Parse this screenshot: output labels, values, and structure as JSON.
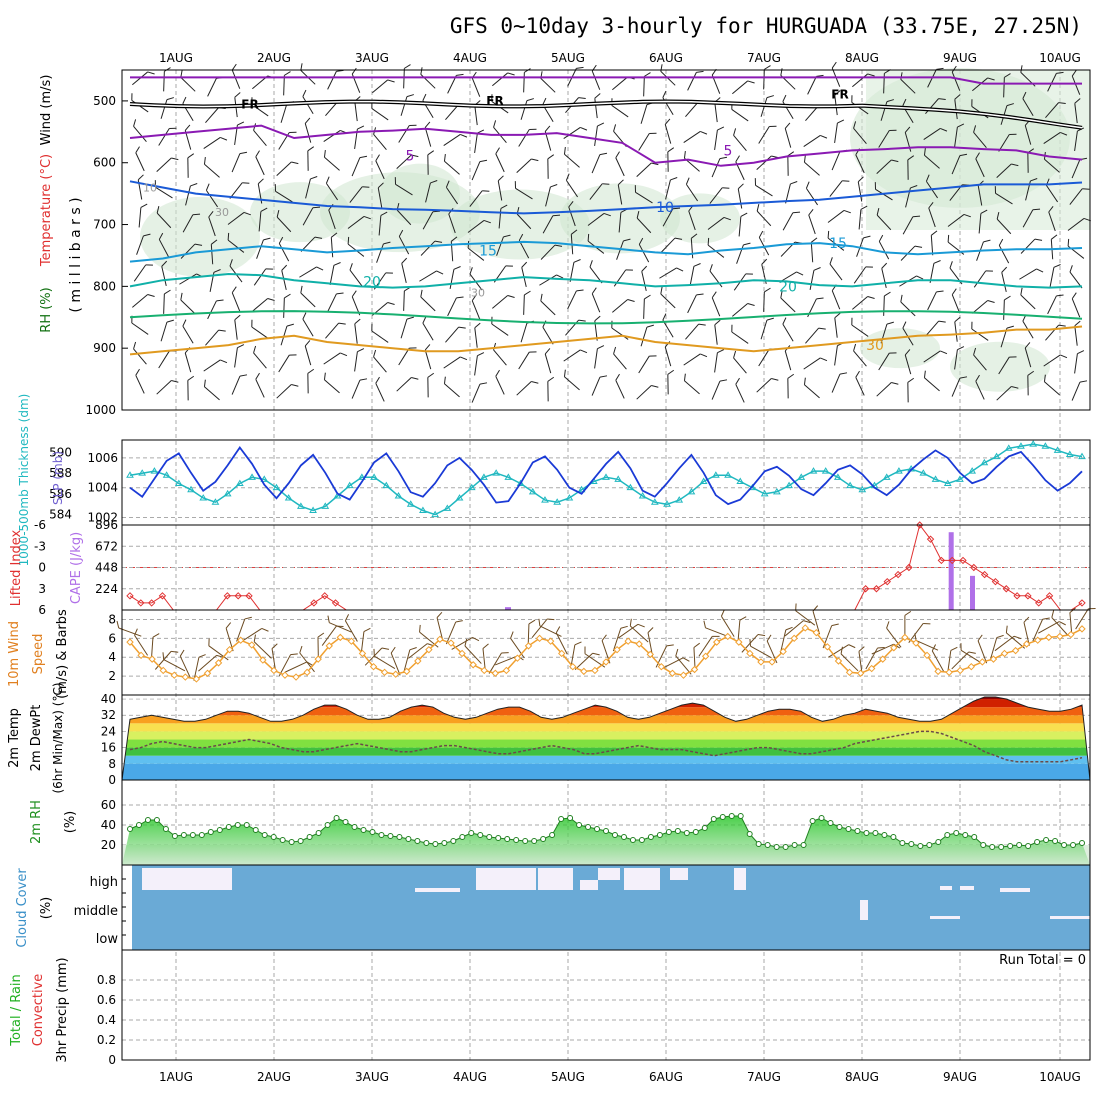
{
  "title": "GFS 0~10day 3-hourly for HURGUADA (33.75E, 27.25N)",
  "dates": [
    "1AUG",
    "2AUG",
    "3AUG",
    "4AUG",
    "5AUG",
    "6AUG",
    "7AUG",
    "8AUG",
    "9AUG",
    "10AUG"
  ],
  "colors": {
    "purple": "#8a1ab3",
    "blue1": "#1a5ad6",
    "blue2": "#1a9ad6",
    "teal": "#10b0a8",
    "green": "#18b070",
    "orange": "#e09a20",
    "slp": "#1a3ad6",
    "thick": "#20b8c0",
    "li": "#e03030",
    "cape": "#b070e8",
    "wind": "#f0a030",
    "rh": "#20a020",
    "cloud": "#6aaad6"
  },
  "panel_labels": {
    "wind": "Wind (m/s)",
    "temp": "Temperature (°C)",
    "rh": "RH (%)",
    "mb": "( m i l l i b a r s )",
    "thick": "1000-500mb Thickness (dm)",
    "slp": "SLP (mb)",
    "li": "Lifted Index",
    "cape": "CAPE (J/kg)",
    "w10": "10m Wind",
    "speed": "Speed",
    "barbs": "(m/s) & Barbs",
    "t2m": "2m Temp",
    "dew": "2m DewPt",
    "minmax": "(6hr Min/Max) (°C)",
    "rh2m": "2m RH",
    "pct": "(%)",
    "cloud": "Cloud Cover",
    "cpct": "(%)",
    "precip_a": "Total / Rain",
    "precip_b": "Convective",
    "precip_c": "3hr Precip (mm)"
  },
  "run_total": "Run Total = 0",
  "cloud_levels": [
    "high",
    "middle",
    "low"
  ],
  "chart_data": [
    {
      "type": "line",
      "panel": "upper-air cross-section",
      "y_label": "millibars",
      "ylim": [
        1000,
        450
      ],
      "y_ticks": [
        "500",
        "600",
        "700",
        "800",
        "900",
        "1000"
      ],
      "freezing_level_label": "FR",
      "freezing_level_mb": 505,
      "temperature_contour_labels": [
        "5",
        "10",
        "15",
        "20",
        "30"
      ],
      "rh_contour_labels": [
        "10",
        "30",
        "30"
      ],
      "series": [
        {
          "name": "5",
          "values": [
            560,
            555,
            550,
            545,
            540,
            560,
            555,
            550,
            548,
            545,
            550,
            555,
            555,
            552,
            560,
            568,
            600,
            595,
            605,
            600,
            590,
            585,
            580,
            578,
            575,
            575,
            578,
            580,
            590,
            595
          ]
        },
        {
          "name": "10",
          "values": [
            630,
            640,
            650,
            655,
            660,
            665,
            670,
            672,
            675,
            676,
            678,
            680,
            682,
            680,
            678,
            675,
            672,
            670,
            668,
            665,
            662,
            660,
            655,
            650,
            645,
            640,
            635,
            635,
            635,
            632
          ]
        },
        {
          "name": "15",
          "values": [
            760,
            755,
            745,
            740,
            735,
            740,
            745,
            742,
            738,
            735,
            732,
            730,
            728,
            730,
            735,
            740,
            745,
            748,
            742,
            738,
            732,
            730,
            735,
            745,
            748,
            745,
            742,
            740,
            740,
            738
          ]
        },
        {
          "name": "20",
          "values": [
            800,
            790,
            785,
            780,
            782,
            790,
            795,
            800,
            802,
            800,
            795,
            790,
            785,
            788,
            790,
            795,
            800,
            798,
            795,
            790,
            792,
            798,
            800,
            795,
            790,
            790,
            795,
            800,
            802,
            800
          ]
        },
        {
          "name": "30",
          "values": [
            910,
            905,
            900,
            895,
            885,
            880,
            890,
            895,
            900,
            905,
            905,
            900,
            895,
            890,
            885,
            880,
            890,
            895,
            900,
            905,
            900,
            895,
            890,
            885,
            880,
            878,
            875,
            870,
            870,
            865
          ]
        }
      ]
    },
    {
      "type": "line",
      "panel": "slp-thickness",
      "left_ticks": [
        "590",
        "588",
        "586",
        "584"
      ],
      "right_ticks": [
        "1006",
        "1004",
        "1002"
      ],
      "series": [
        {
          "name": "SLP (mb)",
          "values": [
            1004,
            1003.4,
            1004.6,
            1005.8,
            1006.3,
            1005.0,
            1003.8,
            1004.4,
            1005.5,
            1006.7,
            1005.6,
            1004.2,
            1003.3,
            1004.3,
            1005.5,
            1006.2,
            1005.0,
            1003.6,
            1003.2,
            1004.4,
            1005.7,
            1006.3,
            1005.1,
            1003.7,
            1003.4,
            1004.3,
            1005.5,
            1006.0,
            1005.2,
            1004.2,
            1003.0,
            1003.1,
            1004.3,
            1005.7,
            1006.1,
            1005.2,
            1004.0,
            1003.6,
            1004.6,
            1005.6,
            1006.4,
            1005.3,
            1003.8,
            1003.4,
            1004.3,
            1005.3,
            1006.2,
            1005.0,
            1003.5,
            1002.9,
            1003.2,
            1004.1,
            1005.1,
            1005.4,
            1004.8,
            1003.9,
            1003.5,
            1004.3,
            1005.2,
            1005.5,
            1004.9,
            1004.0,
            1003.5,
            1004.2,
            1005.2,
            1005.9,
            1006.5,
            1006.0,
            1005.0,
            1004.3,
            1004.6,
            1005.4,
            1006.1,
            1006.4,
            1005.5,
            1004.5,
            1003.8,
            1004.3,
            1005.1
          ]
        },
        {
          "name": "1000-500mb Thickness (dm)",
          "values": [
            587.8,
            588.0,
            588.2,
            587.8,
            587.0,
            586.4,
            585.6,
            585.2,
            586.0,
            587.0,
            587.6,
            587.4,
            586.6,
            585.6,
            584.8,
            584.4,
            584.8,
            585.8,
            586.8,
            587.6,
            587.6,
            586.8,
            585.8,
            585.0,
            584.4,
            584.0,
            584.6,
            585.6,
            586.6,
            587.6,
            588.0,
            587.6,
            587.0,
            586.2,
            585.4,
            585.2,
            585.6,
            586.4,
            587.2,
            587.6,
            587.4,
            586.6,
            585.8,
            585.2,
            585.0,
            585.4,
            586.2,
            587.2,
            587.8,
            587.8,
            587.2,
            586.6,
            586.0,
            586.2,
            586.8,
            587.6,
            588.2,
            588.2,
            587.6,
            586.8,
            586.4,
            586.8,
            587.6,
            588.2,
            588.4,
            588.0,
            587.4,
            587.0,
            587.4,
            588.2,
            589.0,
            589.6,
            590.4,
            590.6,
            590.8,
            590.6,
            590.2,
            589.8,
            589.6
          ]
        }
      ]
    },
    {
      "type": "bar",
      "panel": "lifted-index-cape",
      "left_ticks": [
        "-6",
        "-3",
        "0",
        "3",
        "6"
      ],
      "right_ticks": [
        "896",
        "672",
        "448",
        "224"
      ],
      "series": [
        {
          "name": "Lifted Index",
          "values": [
            4,
            5,
            5,
            4,
            6,
            6,
            6,
            6,
            6,
            4,
            4,
            4,
            6,
            6,
            6,
            6,
            6,
            5,
            4,
            5,
            6,
            6,
            6,
            6,
            6,
            6,
            6,
            6,
            6,
            6,
            6,
            6,
            6,
            6,
            6,
            6,
            6,
            6,
            6,
            6,
            6,
            6,
            6,
            6,
            6,
            6,
            6,
            6,
            6,
            6,
            6,
            6,
            6,
            6,
            6,
            6,
            6,
            6,
            6,
            6,
            6,
            6,
            6,
            6,
            6,
            6,
            6,
            6,
            3,
            3,
            2,
            1,
            0,
            -6,
            -4,
            -1,
            -1,
            -1,
            0,
            1,
            2,
            3,
            4,
            4,
            5,
            4,
            6,
            6,
            5
          ]
        },
        {
          "name": "CAPE (J/kg)",
          "values": [
            0,
            0,
            0,
            0,
            0,
            0,
            0,
            0,
            0,
            0,
            0,
            0,
            0,
            0,
            0,
            0,
            0,
            0,
            0,
            0,
            0,
            0,
            0,
            0,
            0,
            0,
            0,
            0,
            0,
            0,
            0,
            0,
            0,
            0,
            0,
            0,
            0,
            0,
            0,
            0,
            0,
            0,
            0,
            0,
            0,
            0,
            0,
            0,
            0,
            0,
            0,
            0,
            0,
            0,
            0,
            0,
            0,
            0,
            0,
            0,
            0,
            0,
            0,
            0,
            0,
            0,
            0,
            0,
            0,
            0,
            0,
            0,
            0,
            0,
            0,
            820,
            0,
            0,
            0,
            0,
            0,
            0,
            0,
            0,
            0,
            0,
            0,
            0
          ]
        }
      ]
    },
    {
      "type": "line",
      "panel": "10m-wind",
      "y_ticks": [
        "8",
        "6",
        "4",
        "2"
      ],
      "ylim": [
        0,
        9
      ],
      "series": [
        {
          "name": "10m Wind Speed",
          "values": [
            5.6,
            4.2,
            3.8,
            2.6,
            2.1,
            1.9,
            1.7,
            2.3,
            3.4,
            4.8,
            5.8,
            5.3,
            3.7,
            2.6,
            2.1,
            1.9,
            2.4,
            3.8,
            5.2,
            6.1,
            5.7,
            4.4,
            3.0,
            2.4,
            2.2,
            2.5,
            3.6,
            4.8,
            5.9,
            5.5,
            4.4,
            3.2,
            2.6,
            2.3,
            2.6,
            3.9,
            5.2,
            6.0,
            5.7,
            4.4,
            3.0,
            2.5,
            2.6,
            3.5,
            4.8,
            5.7,
            5.4,
            4.3,
            3.0,
            2.3,
            2.1,
            2.7,
            4.1,
            5.6,
            6.2,
            5.6,
            4.4,
            3.5,
            3.5,
            4.6,
            6.0,
            7.1,
            6.6,
            5.1,
            3.6,
            2.4,
            2.3,
            2.8,
            3.8,
            5.0,
            6.1,
            5.5,
            4.2,
            2.5,
            2.4,
            2.6,
            3.0,
            3.5,
            3.8,
            4.4,
            4.7,
            5.4,
            5.8,
            6.1,
            6.2,
            6.4,
            7.0
          ]
        }
      ]
    },
    {
      "type": "area",
      "panel": "2m-temperature",
      "y_ticks": [
        "40",
        "32",
        "24",
        "16",
        "8",
        "0"
      ],
      "ylim": [
        0,
        42
      ],
      "series": [
        {
          "name": "2m Temp",
          "values": [
            30,
            31,
            32,
            31,
            30,
            29,
            29,
            30,
            32,
            34,
            34,
            33,
            31,
            29,
            29,
            30,
            32,
            35,
            37,
            37,
            35,
            32,
            30,
            30,
            31,
            34,
            36,
            37,
            36,
            33,
            31,
            30,
            31,
            33,
            35,
            36,
            36,
            34,
            31,
            30,
            31,
            33,
            35,
            37,
            36,
            34,
            31,
            30,
            31,
            33,
            35,
            37,
            38,
            37,
            34,
            31,
            29,
            30,
            32,
            34,
            35,
            35,
            34,
            31,
            29,
            30,
            32,
            33,
            35,
            34,
            33,
            31,
            30,
            29,
            29,
            30,
            33,
            36,
            39,
            41,
            41,
            40,
            38,
            36,
            35,
            34,
            34,
            35,
            37
          ]
        },
        {
          "name": "2m DewPt",
          "values": [
            15,
            16,
            18,
            19,
            18,
            17,
            16,
            16,
            17,
            18,
            19,
            20,
            19,
            18,
            16,
            15,
            14,
            14,
            15,
            16,
            17,
            18,
            17,
            16,
            15,
            14,
            14,
            15,
            16,
            17,
            17,
            16,
            15,
            14,
            13,
            13,
            14,
            15,
            16,
            17,
            16,
            15,
            13,
            13,
            14,
            15,
            16,
            17,
            16,
            15,
            15,
            15,
            14,
            13,
            12,
            13,
            14,
            15,
            16,
            16,
            15,
            14,
            13,
            13,
            14,
            15,
            16,
            18,
            19,
            20,
            21,
            22,
            23,
            24,
            24,
            23,
            21,
            19,
            17,
            14,
            12,
            10,
            9,
            9,
            9,
            9,
            9,
            10,
            11
          ]
        }
      ]
    },
    {
      "type": "area",
      "panel": "2m-rh",
      "y_ticks": [
        "60",
        "40",
        "20"
      ],
      "ylim": [
        0,
        85
      ],
      "series": [
        {
          "name": "2m RH",
          "values": [
            36,
            40,
            45,
            45,
            36,
            29,
            30,
            30,
            30,
            33,
            35,
            38,
            40,
            40,
            35,
            30,
            28,
            25,
            23,
            24,
            28,
            32,
            40,
            47,
            43,
            38,
            35,
            33,
            30,
            29,
            28,
            26,
            24,
            22,
            21,
            22,
            24,
            28,
            32,
            30,
            28,
            27,
            26,
            25,
            24,
            24,
            26,
            30,
            46,
            47,
            40,
            38,
            36,
            34,
            30,
            28,
            25,
            25,
            28,
            30,
            33,
            34,
            32,
            33,
            37,
            46,
            48,
            49,
            49,
            31,
            21,
            20,
            18,
            18,
            20,
            20,
            44,
            47,
            42,
            38,
            36,
            34,
            32,
            32,
            30,
            28,
            22,
            21,
            19,
            20,
            23,
            30,
            32,
            30,
            28,
            20,
            18,
            18,
            19,
            20,
            19,
            23,
            25,
            24,
            20,
            20,
            22
          ]
        }
      ]
    },
    {
      "type": "bar",
      "panel": "3hr-precip",
      "y_ticks": [
        "0.8",
        "0.6",
        "0.4",
        "0.2",
        "0"
      ],
      "ylim": [
        0,
        1
      ],
      "series": [
        {
          "name": "Total / Rain",
          "values": [
            0,
            0,
            0,
            0,
            0,
            0,
            0,
            0,
            0,
            0
          ]
        },
        {
          "name": "Convective",
          "values": [
            0,
            0,
            0,
            0,
            0,
            0,
            0,
            0,
            0,
            0
          ]
        }
      ]
    }
  ]
}
